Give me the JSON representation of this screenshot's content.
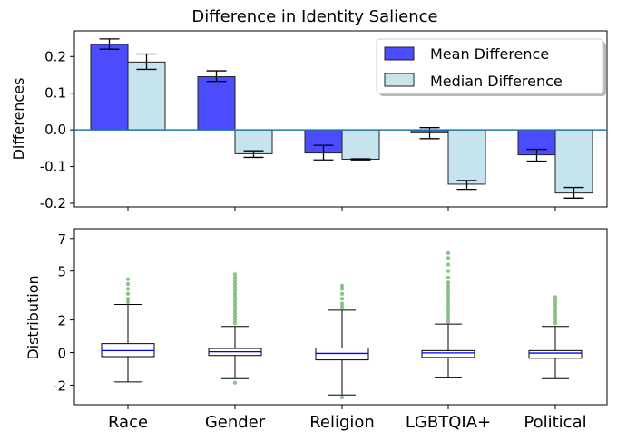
{
  "chart_data": [
    {
      "type": "bar",
      "title": "Difference in Identity Salience",
      "ylabel": "Differences",
      "xlabel": "",
      "ylim": [
        -0.21,
        0.27
      ],
      "yticks": [
        0.2,
        0.1,
        0.0,
        -0.1,
        -0.2
      ],
      "ytick_labels": [
        "0.2",
        "0.1",
        "0.0",
        "-0.1",
        "-0.2"
      ],
      "categories": [
        "Race",
        "Gender",
        "Religion",
        "LGBTQIA+",
        "Political"
      ],
      "legend_position": "top-right",
      "baseline": 0,
      "series": [
        {
          "name": "Mean Difference",
          "color": "#0000ff",
          "values": [
            0.233,
            0.145,
            -0.063,
            -0.008,
            -0.068
          ],
          "err_low": [
            0.22,
            0.132,
            -0.082,
            -0.024,
            -0.085
          ],
          "err_high": [
            0.248,
            0.161,
            -0.042,
            0.006,
            -0.053
          ]
        },
        {
          "name": "Median Difference",
          "color": "#add8e6",
          "values": [
            0.185,
            -0.065,
            -0.08,
            -0.148,
            -0.172
          ],
          "err_low": [
            0.165,
            -0.075,
            -0.082,
            -0.162,
            -0.186
          ],
          "err_high": [
            0.207,
            -0.057,
            -0.079,
            -0.138,
            -0.157
          ]
        }
      ]
    },
    {
      "type": "box",
      "ylabel": "Distribution",
      "ylim": [
        -3.2,
        7.6
      ],
      "yticks": [
        7,
        5,
        2,
        0,
        -2
      ],
      "ytick_labels": [
        "7",
        "5",
        "2",
        "0",
        "-2"
      ],
      "categories": [
        "Race",
        "Gender",
        "Religion",
        "LGBTQIA+",
        "Political"
      ],
      "boxes": [
        {
          "whisker_low": -1.8,
          "q1": -0.25,
          "median": 0.12,
          "q3": 0.55,
          "whisker_high": 2.95,
          "outliers": [
            3.1,
            3.3,
            3.6,
            3.9,
            4.2,
            4.5
          ]
        },
        {
          "whisker_low": -1.6,
          "q1": -0.18,
          "median": 0.05,
          "q3": 0.25,
          "whisker_high": 1.6,
          "outliers": [
            -1.85,
            1.8,
            2.0,
            2.2,
            2.4,
            2.6,
            2.8,
            3.0,
            3.2,
            3.4,
            3.6,
            3.8,
            4.0,
            4.2,
            4.4,
            4.6,
            4.8
          ]
        },
        {
          "whisker_low": -2.6,
          "q1": -0.45,
          "median": -0.05,
          "q3": 0.28,
          "whisker_high": 2.6,
          "outliers": [
            -2.75,
            2.8,
            3.0,
            3.3,
            3.6,
            3.9,
            4.1
          ]
        },
        {
          "whisker_low": -1.55,
          "q1": -0.3,
          "median": -0.02,
          "q3": 0.12,
          "whisker_high": 1.75,
          "outliers": [
            1.9,
            2.1,
            2.3,
            2.5,
            2.7,
            2.9,
            3.1,
            3.3,
            3.5,
            3.7,
            3.9,
            4.1,
            4.3,
            4.6,
            5.0,
            5.4,
            5.8,
            6.1
          ]
        },
        {
          "whisker_low": -1.6,
          "q1": -0.35,
          "median": -0.03,
          "q3": 0.12,
          "whisker_high": 1.6,
          "outliers": [
            1.8,
            2.0,
            2.2,
            2.4,
            2.6,
            2.8,
            3.0,
            3.2,
            3.4
          ]
        }
      ],
      "box_edge_color": "#000000",
      "median_color": "#0000ff",
      "outlier_color": "#008000"
    }
  ]
}
